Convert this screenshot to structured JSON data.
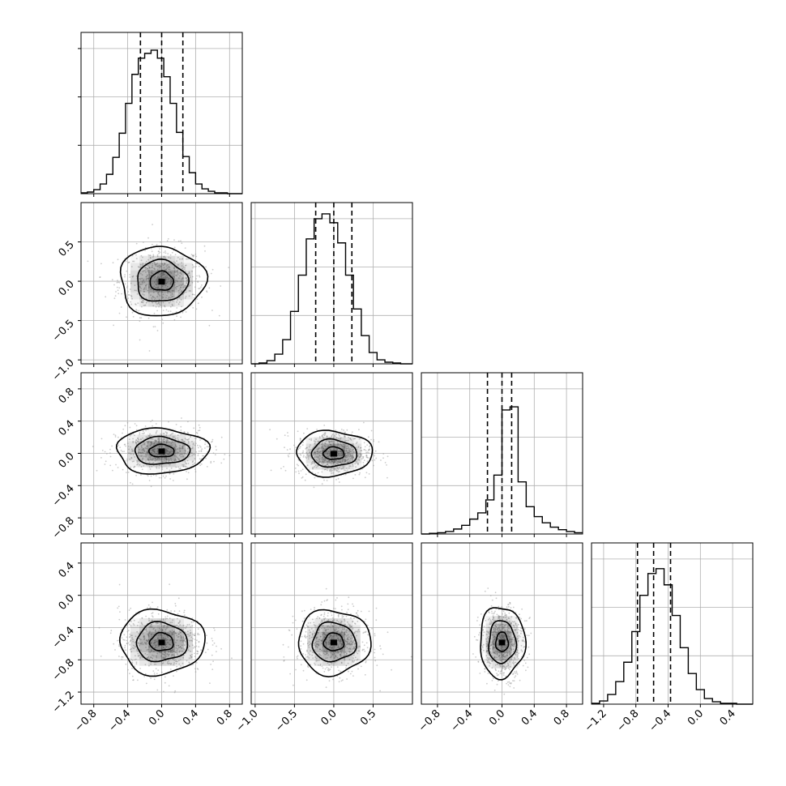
{
  "chart_data": {
    "type": "corner",
    "n_parameters": 4,
    "parameters": [
      {
        "range": [
          -0.95,
          0.95
        ],
        "ticks": [
          -0.8,
          -0.4,
          0.0,
          0.4,
          0.8
        ],
        "tick_labels": [
          "−0.8",
          "−0.4",
          "0.0",
          "0.4",
          "0.8"
        ],
        "hist": {
          "bin_edges": [
            -0.95,
            -0.875,
            -0.8,
            -0.725,
            -0.65,
            -0.575,
            -0.5,
            -0.425,
            -0.35,
            -0.275,
            -0.2,
            -0.125,
            -0.05,
            0.025,
            0.1,
            0.175,
            0.25,
            0.325,
            0.4,
            0.475,
            0.55,
            0.625,
            0.7,
            0.775,
            0.85,
            0.95
          ],
          "counts": [
            1,
            2,
            5,
            12,
            24,
            45,
            75,
            112,
            148,
            168,
            174,
            178,
            168,
            145,
            112,
            76,
            46,
            26,
            12,
            6,
            3,
            1,
            1,
            0,
            0
          ],
          "ylim": [
            0,
            200
          ]
        },
        "quantiles": [
          -0.25,
          0.0,
          0.25
        ]
      },
      {
        "range": [
          -1.05,
          1.0
        ],
        "ticks": [
          -1.0,
          -0.5,
          0.0,
          0.5
        ],
        "tick_labels": [
          "−1.0",
          "−0.5",
          "0.0",
          "0.5"
        ],
        "hist": {
          "bin_edges": [
            -1.05,
            -0.95,
            -0.85,
            -0.75,
            -0.65,
            -0.55,
            -0.45,
            -0.35,
            -0.25,
            -0.15,
            -0.05,
            0.05,
            0.15,
            0.25,
            0.35,
            0.45,
            0.55,
            0.65,
            0.75,
            0.85,
            1.0
          ],
          "counts": [
            0,
            1,
            4,
            12,
            30,
            65,
            110,
            155,
            180,
            186,
            175,
            150,
            110,
            68,
            35,
            14,
            5,
            2,
            1,
            0
          ],
          "ylim": [
            0,
            200
          ]
        },
        "quantiles": [
          -0.23,
          0.0,
          0.23
        ]
      },
      {
        "range": [
          -1.0,
          1.0
        ],
        "ticks": [
          -0.8,
          -0.4,
          0.0,
          0.4,
          0.8
        ],
        "tick_labels": [
          "−0.8",
          "−0.4",
          "0.0",
          "0.4",
          "0.8"
        ],
        "hist": {
          "bin_edges": [
            -1.0,
            -0.9,
            -0.8,
            -0.7,
            -0.6,
            -0.5,
            -0.4,
            -0.3,
            -0.2,
            -0.1,
            0.0,
            0.1,
            0.2,
            0.3,
            0.4,
            0.5,
            0.6,
            0.7,
            0.8,
            0.9,
            1.0
          ],
          "counts": [
            0,
            1,
            2,
            4,
            8,
            14,
            24,
            34,
            55,
            95,
            200,
            205,
            84,
            44,
            28,
            18,
            11,
            7,
            4,
            2
          ],
          "ylim": [
            0,
            260
          ]
        },
        "quantiles": [
          -0.18,
          0.0,
          0.12
        ]
      },
      {
        "range": [
          -1.35,
          0.65
        ],
        "ticks": [
          -1.2,
          -0.8,
          -0.4,
          0.0,
          0.4
        ],
        "tick_labels": [
          "−1.2",
          "−0.8",
          "−0.4",
          "0.0",
          "0.4"
        ],
        "hist": {
          "bin_edges": [
            -1.35,
            -1.25,
            -1.15,
            -1.05,
            -0.95,
            -0.85,
            -0.75,
            -0.65,
            -0.55,
            -0.45,
            -0.35,
            -0.25,
            -0.15,
            -0.05,
            0.05,
            0.15,
            0.25,
            0.35,
            0.45,
            0.55,
            0.65
          ],
          "counts": [
            1,
            4,
            12,
            28,
            52,
            90,
            135,
            162,
            168,
            148,
            110,
            70,
            38,
            18,
            7,
            3,
            1,
            1,
            0,
            0
          ],
          "ylim": [
            0,
            200
          ]
        },
        "quantiles": [
          -0.78,
          -0.58,
          -0.37
        ]
      }
    ],
    "pairs": [
      {
        "row": 1,
        "col": 0,
        "x_center": 0.0,
        "y_center": 0.0,
        "x_sigma": 0.25,
        "y_sigma": 0.22,
        "density_cells": [
          {
            "x": 0.0,
            "y": 0.0,
            "level": 0.95
          },
          {
            "x": -0.1,
            "y": 0.0,
            "level": 0.75
          },
          {
            "x": 0.1,
            "y": 0.0,
            "level": 0.75
          },
          {
            "x": 0.0,
            "y": 0.1,
            "level": 0.7
          },
          {
            "x": 0.0,
            "y": -0.1,
            "level": 0.7
          }
        ]
      },
      {
        "row": 2,
        "col": 0,
        "x_center": 0.0,
        "y_center": 0.03,
        "x_sigma": 0.27,
        "y_sigma": 0.14,
        "density_cells": [
          {
            "x": 0.0,
            "y": 0.0,
            "level": 0.95
          },
          {
            "x": -0.1,
            "y": 0.0,
            "level": 0.75
          },
          {
            "x": 0.1,
            "y": 0.0,
            "level": 0.75
          }
        ]
      },
      {
        "row": 2,
        "col": 1,
        "x_center": 0.0,
        "y_center": 0.0,
        "x_sigma": 0.24,
        "y_sigma": 0.14,
        "density_cells": [
          {
            "x": 0.0,
            "y": 0.0,
            "level": 0.95
          },
          {
            "x": -0.1,
            "y": 0.0,
            "level": 0.75
          },
          {
            "x": 0.1,
            "y": 0.0,
            "level": 0.75
          }
        ]
      },
      {
        "row": 3,
        "col": 0,
        "x_center": 0.0,
        "y_center": -0.58,
        "x_sigma": 0.25,
        "y_sigma": 0.2,
        "density_cells": [
          {
            "x": 0.0,
            "y": -0.58,
            "level": 0.95
          },
          {
            "x": -0.1,
            "y": -0.58,
            "level": 0.75
          },
          {
            "x": 0.1,
            "y": -0.58,
            "level": 0.75
          }
        ]
      },
      {
        "row": 3,
        "col": 1,
        "x_center": 0.0,
        "y_center": -0.58,
        "x_sigma": 0.23,
        "y_sigma": 0.2,
        "density_cells": [
          {
            "x": 0.0,
            "y": -0.58,
            "level": 0.95
          },
          {
            "x": -0.1,
            "y": -0.58,
            "level": 0.75
          },
          {
            "x": 0.1,
            "y": -0.58,
            "level": 0.75
          }
        ]
      },
      {
        "row": 3,
        "col": 2,
        "x_center": 0.0,
        "y_center": -0.58,
        "x_sigma": 0.14,
        "y_sigma": 0.22,
        "density_cells": [
          {
            "x": 0.0,
            "y": -0.58,
            "level": 0.95
          },
          {
            "x": 0.0,
            "y": -0.48,
            "level": 0.75
          },
          {
            "x": 0.0,
            "y": -0.68,
            "level": 0.75
          }
        ]
      }
    ],
    "grid": true,
    "colors": {
      "line": "#000000",
      "grid": "#b0b0b0",
      "points": "#9a9a9a",
      "density": "#000000"
    }
  }
}
